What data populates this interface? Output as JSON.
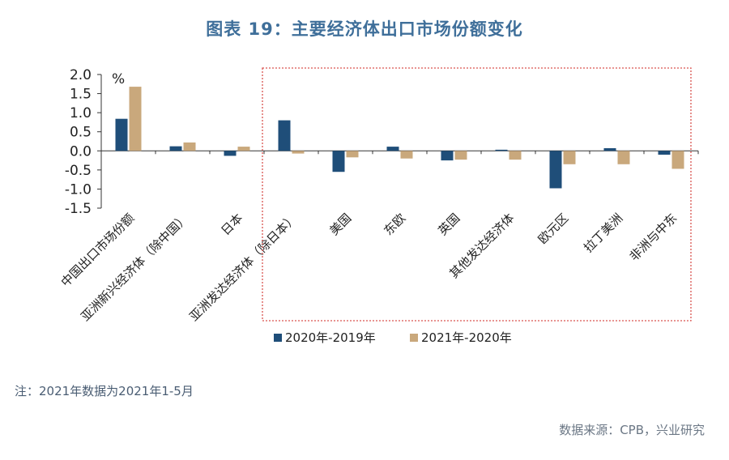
{
  "title": "图表 19：主要经济体出口市场份额变化",
  "note": "注：2021年数据为2021年1-5月",
  "source": "数据来源：CPB，兴业研究",
  "colors": {
    "series1": "#1f4e79",
    "series2": "#c9a87c",
    "frame": "#d9534f",
    "axis": "#333333"
  },
  "chart_data": {
    "type": "bar",
    "ylabel": "%",
    "ylim": [
      -1.5,
      2.0
    ],
    "yticks": [
      "2.0",
      "1.5",
      "1.0",
      "0.5",
      "0.0",
      "-0.5",
      "-1.0",
      "-1.5"
    ],
    "categories": [
      "中国出口市场份额",
      "亚洲新兴经济体（除中国）",
      "日本",
      "亚洲发达经济体（除日本）",
      "美国",
      "东欧",
      "英国",
      "其他发达经济体",
      "欧元区",
      "拉丁美洲",
      "非洲与中东"
    ],
    "series": [
      {
        "name": "2020年-2019年",
        "values": [
          0.84,
          0.12,
          -0.13,
          0.8,
          -0.55,
          0.11,
          -0.25,
          0.03,
          -0.98,
          0.07,
          -0.1
        ]
      },
      {
        "name": "2021年-2020年",
        "values": [
          1.68,
          0.22,
          0.11,
          -0.07,
          -0.17,
          -0.2,
          -0.23,
          -0.23,
          -0.35,
          -0.35,
          -0.47
        ]
      }
    ],
    "legend_position": "bottom",
    "highlight_group": "亚洲发达经济体（除日本） to 非洲与中东"
  }
}
